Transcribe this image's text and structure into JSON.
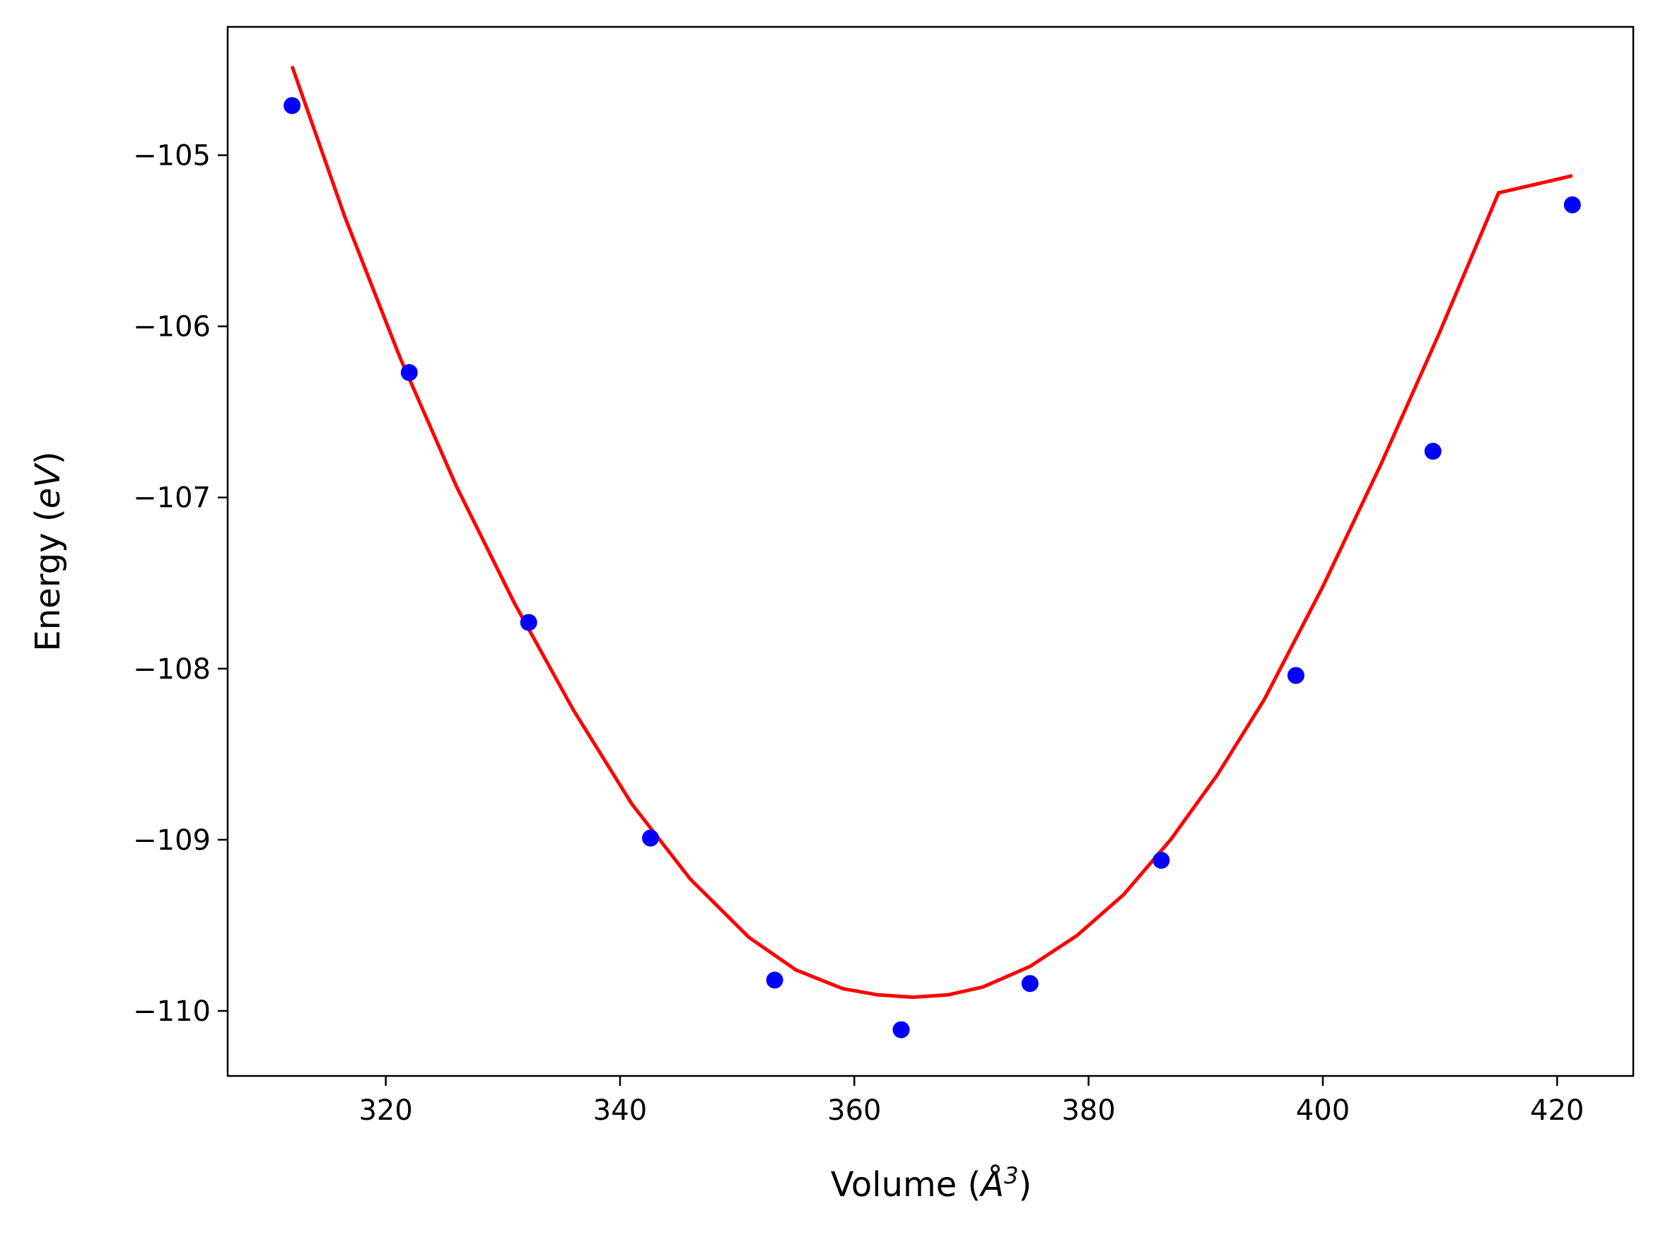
{
  "chart_data": {
    "type": "scatter",
    "xlabel_main": "Volume (",
    "xlabel_symbol": "Å",
    "xlabel_power": "3",
    "xlabel_close": ")",
    "ylabel_main": "Energy (",
    "ylabel_unit": "eV",
    "ylabel_close": ")",
    "xlim": [
      306.5,
      426.5
    ],
    "ylim": [
      -110.38,
      -104.25
    ],
    "xticks": [
      320,
      340,
      360,
      380,
      400,
      420
    ],
    "xtick_labels": [
      "320",
      "340",
      "360",
      "380",
      "400",
      "420"
    ],
    "yticks": [
      -110,
      -109,
      -108,
      -107,
      -106,
      -105
    ],
    "ytick_labels": [
      "−110",
      "−109",
      "−108",
      "−107",
      "−106",
      "−105"
    ],
    "grid": false,
    "legend": false,
    "colors": {
      "points": "#0000ff",
      "fit": "#ff0000",
      "axes": "#000000"
    },
    "series": [
      {
        "kind": "points",
        "x": [
          312.0,
          322.0,
          332.2,
          342.6,
          353.2,
          364.0,
          375.0,
          386.2,
          397.7,
          409.4,
          421.3
        ],
        "y": [
          -104.71,
          -106.27,
          -107.73,
          -108.99,
          -109.82,
          -110.11,
          -109.84,
          -109.12,
          -108.04,
          -106.73,
          -105.29
        ]
      },
      {
        "kind": "fit_curve",
        "x": [
          312.0,
          316.5,
          321.2,
          326.0,
          331.0,
          336.0,
          341.0,
          346.0,
          351.0,
          355.0,
          359.0,
          362.0,
          365.0,
          368.0,
          371.0,
          375.0,
          379.0,
          383.0,
          387.0,
          391.0,
          395.0,
          400.0,
          405.0,
          410.0,
          415.0,
          421.3
        ],
        "y": [
          -104.48,
          -105.36,
          -106.18,
          -106.93,
          -107.62,
          -108.24,
          -108.79,
          -109.23,
          -109.57,
          -109.76,
          -109.87,
          -109.906,
          -109.92,
          -109.906,
          -109.86,
          -109.74,
          -109.56,
          -109.32,
          -109.0,
          -108.62,
          -108.18,
          -107.52,
          -106.8,
          -106.03,
          -105.22,
          -105.12
        ]
      }
    ]
  }
}
